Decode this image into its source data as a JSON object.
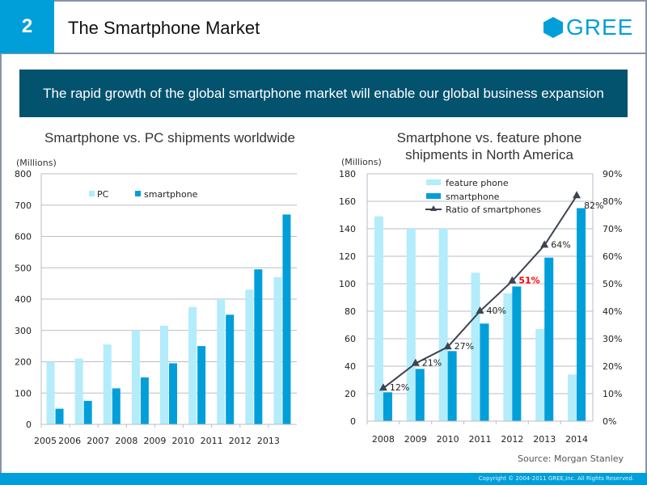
{
  "header": {
    "slide_number": "2",
    "title": "The Smartphone Market",
    "logo_text": "GREE"
  },
  "banner": {
    "text": "The rapid growth of the global smartphone market will enable our global business expansion"
  },
  "colors": {
    "accent": "#009fd9",
    "banner_bg": "#03526e",
    "feature_light": "#b3ecfa",
    "smartphone_dark": "#009fd9",
    "line": "#3d4350",
    "highlight": "#ff0000"
  },
  "chart_data": [
    {
      "type": "bar",
      "title": "Smartphone vs. PC shipments worldwide",
      "ylabel": "(Millions)",
      "xlabel": "",
      "ylim": [
        0,
        800
      ],
      "yticks": [
        0,
        100,
        200,
        300,
        400,
        500,
        600,
        700,
        800
      ],
      "grid": true,
      "legend": "top",
      "categories": [
        "2005",
        "2006",
        "2007",
        "2008",
        "2009",
        "2010",
        "2011",
        "2012",
        "2013"
      ],
      "series": [
        {
          "name": "PC",
          "values": [
            200,
            210,
            255,
            300,
            315,
            375,
            400,
            430,
            470
          ]
        },
        {
          "name": "smartphone",
          "values": [
            50,
            75,
            115,
            150,
            195,
            250,
            350,
            495,
            670
          ]
        }
      ]
    },
    {
      "type": "bar",
      "title": "Smartphone vs. feature phone shipments in North America",
      "ylabel": "(Millions)",
      "xlabel": "",
      "ylim": [
        0,
        180
      ],
      "yticks": [
        0,
        20,
        40,
        60,
        80,
        100,
        120,
        140,
        160,
        180
      ],
      "y2lim": [
        0,
        90
      ],
      "y2ticks": [
        "0%",
        "10%",
        "20%",
        "30%",
        "40%",
        "50%",
        "60%",
        "70%",
        "80%",
        "90%"
      ],
      "grid": true,
      "legend": "top",
      "categories": [
        "2008",
        "2009",
        "2010",
        "2011",
        "2012",
        "2013",
        "2014"
      ],
      "series": [
        {
          "name": "feature phone",
          "values": [
            149,
            140,
            140,
            108,
            93,
            67,
            34
          ]
        },
        {
          "name": "smartphone",
          "values": [
            21,
            38,
            51,
            71,
            98,
            119,
            155
          ]
        },
        {
          "name": "Ratio of smartphones",
          "type": "line",
          "axis": "right",
          "values": [
            12,
            21,
            27,
            40,
            51,
            64,
            82
          ],
          "labels": [
            "12%",
            "21%",
            "27%",
            "40%",
            "51%",
            "64%",
            "82%"
          ],
          "highlight_index": 4
        }
      ]
    }
  ],
  "source": "Source: Morgan Stanley",
  "footer": "Copyright © 2004-2011 GREE,Inc. All Rights Reserved."
}
